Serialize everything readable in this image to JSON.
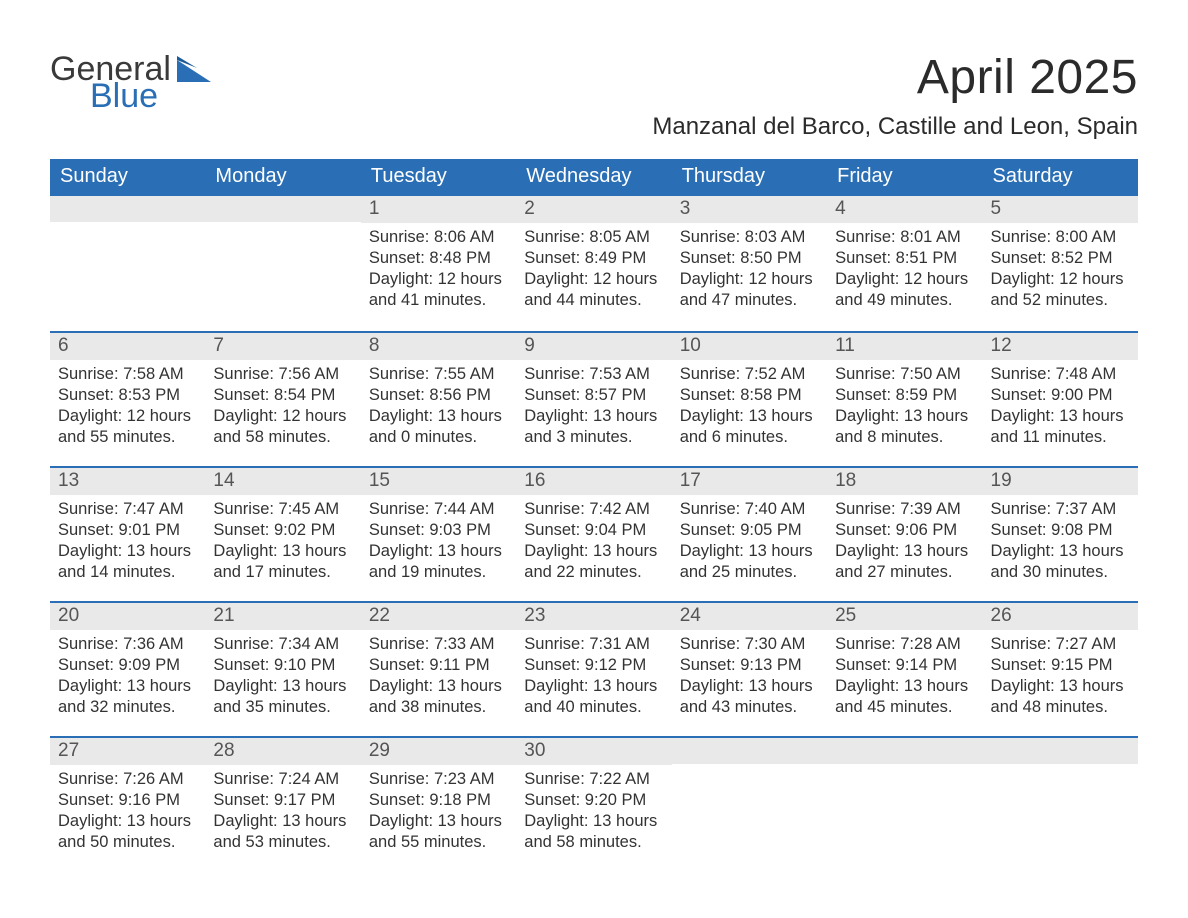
{
  "brand": {
    "word1": "General",
    "word2": "Blue",
    "accent_color": "#2a6fb5"
  },
  "title": "April 2025",
  "location": "Manzanal del Barco, Castille and Leon, Spain",
  "styling": {
    "header_bg": "#2a6fb5",
    "header_text": "#ffffff",
    "daynum_bg": "#e9e9e9",
    "daynum_text": "#555555",
    "body_text": "#333333",
    "page_bg": "#ffffff",
    "divider_color": "#2a6fb5",
    "title_fontsize": 48,
    "location_fontsize": 24,
    "dayheader_fontsize": 20,
    "body_fontsize": 16.5
  },
  "structure": {
    "type": "calendar",
    "columns": 7,
    "rows": 5,
    "lead_blanks": 2,
    "days_in_month": 30
  },
  "day_headers": [
    "Sunday",
    "Monday",
    "Tuesday",
    "Wednesday",
    "Thursday",
    "Friday",
    "Saturday"
  ],
  "days": [
    {
      "n": "1",
      "sunrise": "Sunrise: 8:06 AM",
      "sunset": "Sunset: 8:48 PM",
      "dl1": "Daylight: 12 hours",
      "dl2": "and 41 minutes."
    },
    {
      "n": "2",
      "sunrise": "Sunrise: 8:05 AM",
      "sunset": "Sunset: 8:49 PM",
      "dl1": "Daylight: 12 hours",
      "dl2": "and 44 minutes."
    },
    {
      "n": "3",
      "sunrise": "Sunrise: 8:03 AM",
      "sunset": "Sunset: 8:50 PM",
      "dl1": "Daylight: 12 hours",
      "dl2": "and 47 minutes."
    },
    {
      "n": "4",
      "sunrise": "Sunrise: 8:01 AM",
      "sunset": "Sunset: 8:51 PM",
      "dl1": "Daylight: 12 hours",
      "dl2": "and 49 minutes."
    },
    {
      "n": "5",
      "sunrise": "Sunrise: 8:00 AM",
      "sunset": "Sunset: 8:52 PM",
      "dl1": "Daylight: 12 hours",
      "dl2": "and 52 minutes."
    },
    {
      "n": "6",
      "sunrise": "Sunrise: 7:58 AM",
      "sunset": "Sunset: 8:53 PM",
      "dl1": "Daylight: 12 hours",
      "dl2": "and 55 minutes."
    },
    {
      "n": "7",
      "sunrise": "Sunrise: 7:56 AM",
      "sunset": "Sunset: 8:54 PM",
      "dl1": "Daylight: 12 hours",
      "dl2": "and 58 minutes."
    },
    {
      "n": "8",
      "sunrise": "Sunrise: 7:55 AM",
      "sunset": "Sunset: 8:56 PM",
      "dl1": "Daylight: 13 hours",
      "dl2": "and 0 minutes."
    },
    {
      "n": "9",
      "sunrise": "Sunrise: 7:53 AM",
      "sunset": "Sunset: 8:57 PM",
      "dl1": "Daylight: 13 hours",
      "dl2": "and 3 minutes."
    },
    {
      "n": "10",
      "sunrise": "Sunrise: 7:52 AM",
      "sunset": "Sunset: 8:58 PM",
      "dl1": "Daylight: 13 hours",
      "dl2": "and 6 minutes."
    },
    {
      "n": "11",
      "sunrise": "Sunrise: 7:50 AM",
      "sunset": "Sunset: 8:59 PM",
      "dl1": "Daylight: 13 hours",
      "dl2": "and 8 minutes."
    },
    {
      "n": "12",
      "sunrise": "Sunrise: 7:48 AM",
      "sunset": "Sunset: 9:00 PM",
      "dl1": "Daylight: 13 hours",
      "dl2": "and 11 minutes."
    },
    {
      "n": "13",
      "sunrise": "Sunrise: 7:47 AM",
      "sunset": "Sunset: 9:01 PM",
      "dl1": "Daylight: 13 hours",
      "dl2": "and 14 minutes."
    },
    {
      "n": "14",
      "sunrise": "Sunrise: 7:45 AM",
      "sunset": "Sunset: 9:02 PM",
      "dl1": "Daylight: 13 hours",
      "dl2": "and 17 minutes."
    },
    {
      "n": "15",
      "sunrise": "Sunrise: 7:44 AM",
      "sunset": "Sunset: 9:03 PM",
      "dl1": "Daylight: 13 hours",
      "dl2": "and 19 minutes."
    },
    {
      "n": "16",
      "sunrise": "Sunrise: 7:42 AM",
      "sunset": "Sunset: 9:04 PM",
      "dl1": "Daylight: 13 hours",
      "dl2": "and 22 minutes."
    },
    {
      "n": "17",
      "sunrise": "Sunrise: 7:40 AM",
      "sunset": "Sunset: 9:05 PM",
      "dl1": "Daylight: 13 hours",
      "dl2": "and 25 minutes."
    },
    {
      "n": "18",
      "sunrise": "Sunrise: 7:39 AM",
      "sunset": "Sunset: 9:06 PM",
      "dl1": "Daylight: 13 hours",
      "dl2": "and 27 minutes."
    },
    {
      "n": "19",
      "sunrise": "Sunrise: 7:37 AM",
      "sunset": "Sunset: 9:08 PM",
      "dl1": "Daylight: 13 hours",
      "dl2": "and 30 minutes."
    },
    {
      "n": "20",
      "sunrise": "Sunrise: 7:36 AM",
      "sunset": "Sunset: 9:09 PM",
      "dl1": "Daylight: 13 hours",
      "dl2": "and 32 minutes."
    },
    {
      "n": "21",
      "sunrise": "Sunrise: 7:34 AM",
      "sunset": "Sunset: 9:10 PM",
      "dl1": "Daylight: 13 hours",
      "dl2": "and 35 minutes."
    },
    {
      "n": "22",
      "sunrise": "Sunrise: 7:33 AM",
      "sunset": "Sunset: 9:11 PM",
      "dl1": "Daylight: 13 hours",
      "dl2": "and 38 minutes."
    },
    {
      "n": "23",
      "sunrise": "Sunrise: 7:31 AM",
      "sunset": "Sunset: 9:12 PM",
      "dl1": "Daylight: 13 hours",
      "dl2": "and 40 minutes."
    },
    {
      "n": "24",
      "sunrise": "Sunrise: 7:30 AM",
      "sunset": "Sunset: 9:13 PM",
      "dl1": "Daylight: 13 hours",
      "dl2": "and 43 minutes."
    },
    {
      "n": "25",
      "sunrise": "Sunrise: 7:28 AM",
      "sunset": "Sunset: 9:14 PM",
      "dl1": "Daylight: 13 hours",
      "dl2": "and 45 minutes."
    },
    {
      "n": "26",
      "sunrise": "Sunrise: 7:27 AM",
      "sunset": "Sunset: 9:15 PM",
      "dl1": "Daylight: 13 hours",
      "dl2": "and 48 minutes."
    },
    {
      "n": "27",
      "sunrise": "Sunrise: 7:26 AM",
      "sunset": "Sunset: 9:16 PM",
      "dl1": "Daylight: 13 hours",
      "dl2": "and 50 minutes."
    },
    {
      "n": "28",
      "sunrise": "Sunrise: 7:24 AM",
      "sunset": "Sunset: 9:17 PM",
      "dl1": "Daylight: 13 hours",
      "dl2": "and 53 minutes."
    },
    {
      "n": "29",
      "sunrise": "Sunrise: 7:23 AM",
      "sunset": "Sunset: 9:18 PM",
      "dl1": "Daylight: 13 hours",
      "dl2": "and 55 minutes."
    },
    {
      "n": "30",
      "sunrise": "Sunrise: 7:22 AM",
      "sunset": "Sunset: 9:20 PM",
      "dl1": "Daylight: 13 hours",
      "dl2": "and 58 minutes."
    }
  ]
}
